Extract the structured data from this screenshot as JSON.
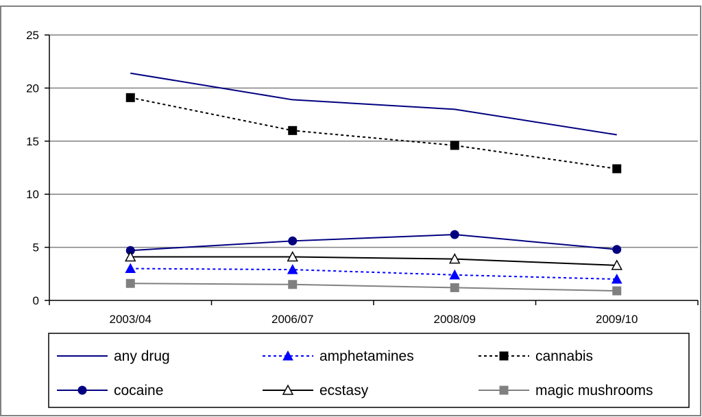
{
  "chart_data": {
    "type": "line",
    "title": "",
    "xlabel": "",
    "ylabel": "",
    "categories": [
      "2003/04",
      "2006/07",
      "2008/09",
      "2009/10"
    ],
    "ylim": [
      0,
      25
    ],
    "yticks": [
      0,
      5,
      10,
      15,
      20,
      25
    ],
    "grid": "horizontal",
    "legend_position": "bottom",
    "series": [
      {
        "name": "any drug",
        "values": [
          21.4,
          18.9,
          18.0,
          15.6
        ],
        "color": "#000080",
        "dash": "solid",
        "marker": "none"
      },
      {
        "name": "amphetamines",
        "values": [
          3.0,
          2.9,
          2.4,
          2.0
        ],
        "color": "#0000FF",
        "dash": "dotted",
        "marker": "triangle"
      },
      {
        "name": "cannabis",
        "values": [
          19.1,
          16.0,
          14.6,
          12.4
        ],
        "color": "#000000",
        "dash": "dotted",
        "marker": "square"
      },
      {
        "name": "cocaine",
        "values": [
          4.7,
          5.6,
          6.2,
          4.8
        ],
        "color": "#000080",
        "dash": "solid",
        "marker": "circle"
      },
      {
        "name": "ecstasy",
        "values": [
          4.1,
          4.1,
          3.9,
          3.3
        ],
        "color": "#000000",
        "dash": "solid",
        "marker": "open-triangle"
      },
      {
        "name": "magic mushrooms",
        "values": [
          1.6,
          1.5,
          1.2,
          0.9
        ],
        "color": "#808080",
        "dash": "solid",
        "marker": "square"
      }
    ]
  }
}
